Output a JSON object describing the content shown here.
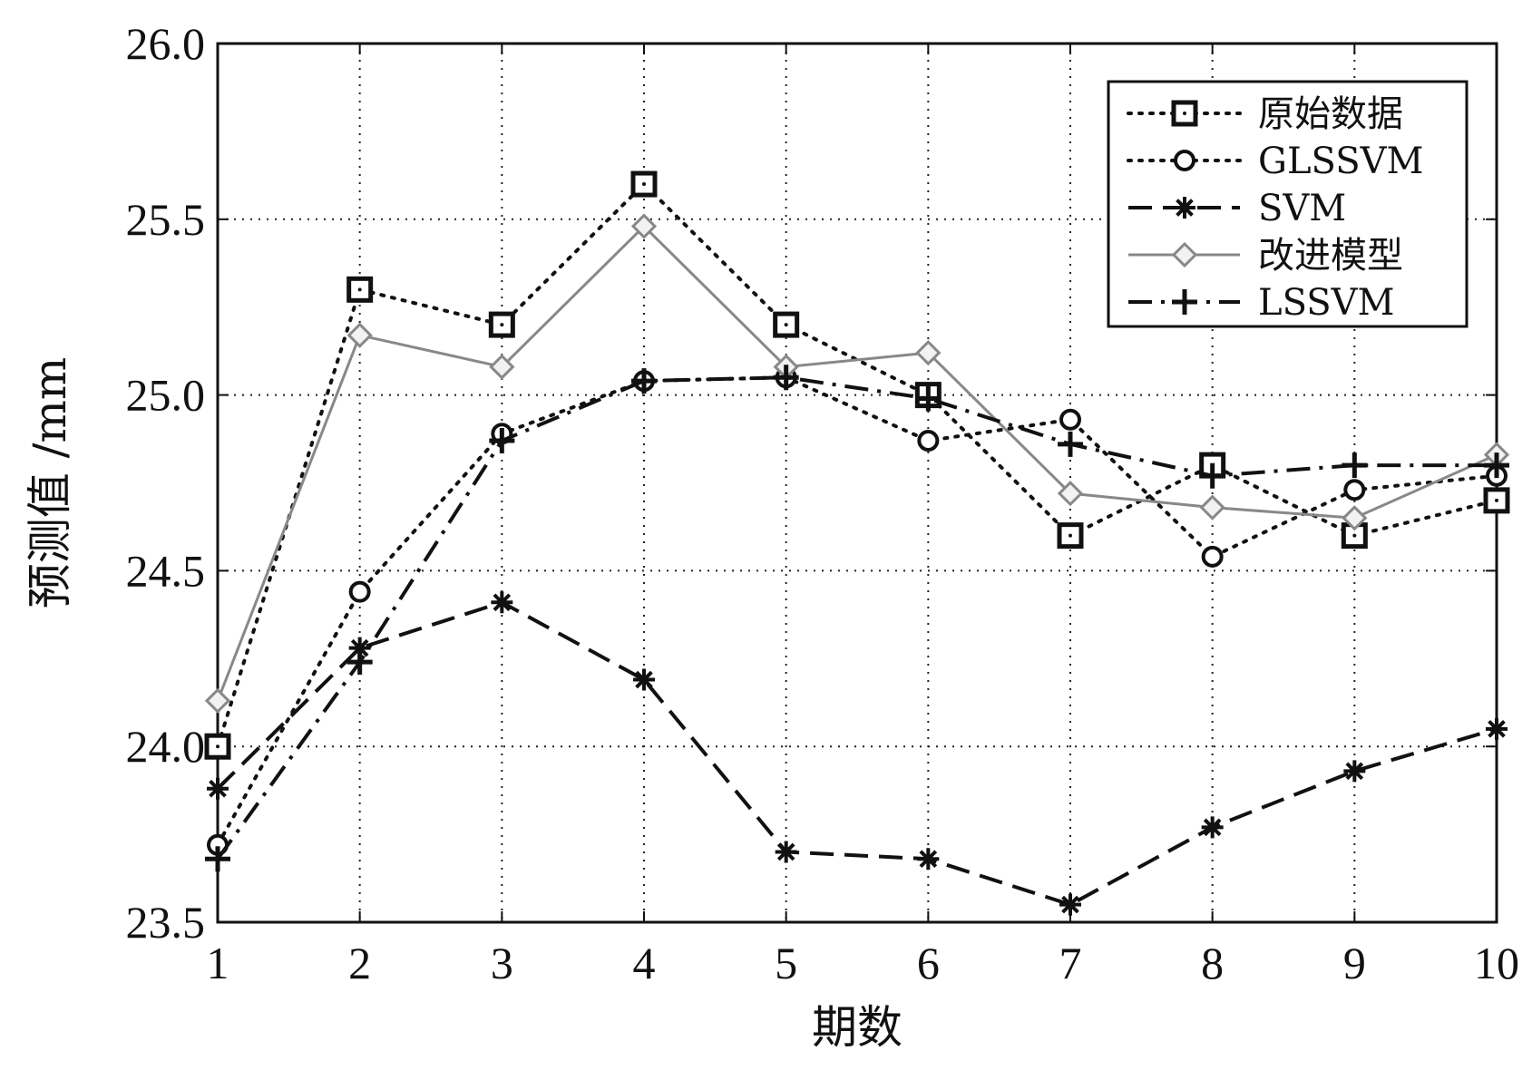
{
  "chart_data": {
    "type": "line",
    "title": "",
    "xlabel": "期数",
    "ylabel": "预测值 /mm",
    "x": [
      1,
      2,
      3,
      4,
      5,
      6,
      7,
      8,
      9,
      10
    ],
    "xlim": [
      1,
      10
    ],
    "ylim": [
      23.5,
      26.0
    ],
    "xticks": [
      "1",
      "2",
      "3",
      "4",
      "5",
      "6",
      "7",
      "8",
      "9",
      "10"
    ],
    "yticks": [
      "23.5",
      "24.0",
      "24.5",
      "25.0",
      "25.5",
      "26.0"
    ],
    "grid": true,
    "legend_position": "top-right",
    "series": [
      {
        "name": "原始数据",
        "marker": "square",
        "line": "dotted",
        "color": "#111111",
        "values": [
          24.0,
          25.3,
          25.2,
          25.6,
          25.2,
          25.0,
          24.6,
          24.8,
          24.6,
          24.7
        ]
      },
      {
        "name": "GLSSVM",
        "marker": "circle",
        "line": "dotted",
        "color": "#111111",
        "values": [
          23.72,
          24.44,
          24.89,
          25.04,
          25.05,
          24.87,
          24.93,
          24.54,
          24.73,
          24.77
        ]
      },
      {
        "name": "SVM",
        "marker": "star",
        "line": "dashed",
        "color": "#111111",
        "values": [
          23.88,
          24.28,
          24.41,
          24.19,
          23.7,
          23.68,
          23.55,
          23.77,
          23.93,
          24.05
        ]
      },
      {
        "name": "改进模型",
        "marker": "diamond",
        "line": "solid",
        "color": "#888888",
        "values": [
          24.13,
          25.17,
          25.08,
          25.48,
          25.08,
          25.12,
          24.72,
          24.68,
          24.65,
          24.83
        ]
      },
      {
        "name": "LSSVM",
        "marker": "plus",
        "line": "dashdot",
        "color": "#111111",
        "values": [
          23.68,
          24.24,
          24.87,
          25.04,
          25.05,
          24.99,
          24.86,
          24.77,
          24.8,
          24.8
        ]
      }
    ]
  }
}
